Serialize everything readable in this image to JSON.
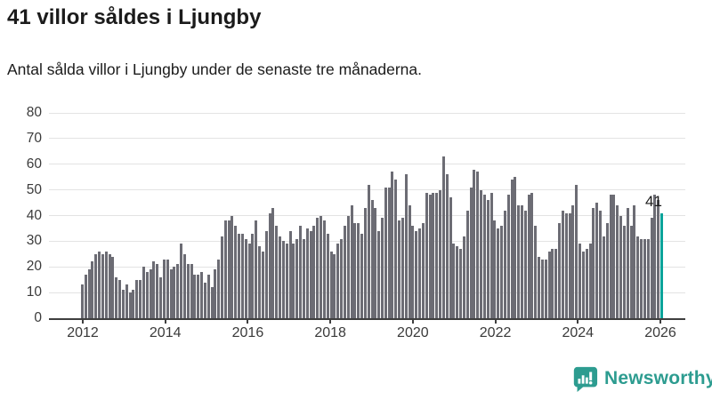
{
  "header": {
    "title": "41 villor såldes i Ljungby",
    "subtitle": "Antal sålda villor i Ljungby under de senaste tre månaderna."
  },
  "chart_data": {
    "type": "bar",
    "title": "41 villor såldes i Ljungby",
    "subtitle": "Antal sålda villor i Ljungby under de senaste tre månaderna.",
    "xlabel": "",
    "ylabel": "",
    "ylim": [
      0,
      80
    ],
    "y_ticks": [
      0,
      10,
      20,
      30,
      40,
      50,
      60,
      70,
      80
    ],
    "x_tick_labels": [
      "2012",
      "2014",
      "2016",
      "2018",
      "2020",
      "2022",
      "2024",
      "2026"
    ],
    "x_unit": "month",
    "grid": "horizontal",
    "bar_color": "#6c6c74",
    "highlight_color": "#0aa39a",
    "highlight_label": "41",
    "values": [
      13,
      17,
      19,
      22,
      25,
      26,
      25,
      26,
      25,
      24,
      16,
      15,
      11,
      13,
      10,
      11,
      15,
      15,
      20,
      18,
      19,
      22,
      21,
      16,
      23,
      23,
      19,
      20,
      21,
      29,
      25,
      21,
      21,
      17,
      17,
      18,
      14,
      17,
      12,
      19,
      23,
      32,
      38,
      38,
      40,
      36,
      33,
      33,
      31,
      29,
      33,
      38,
      28,
      26,
      34,
      41,
      43,
      36,
      32,
      30,
      29,
      34,
      29,
      31,
      36,
      31,
      35,
      34,
      36,
      39,
      40,
      38,
      33,
      26,
      25,
      29,
      31,
      36,
      40,
      44,
      37,
      37,
      33,
      43,
      52,
      46,
      43,
      34,
      39,
      51,
      51,
      57,
      54,
      38,
      39,
      56,
      44,
      36,
      34,
      35,
      37,
      49,
      48,
      49,
      49,
      50,
      63,
      56,
      47,
      29,
      28,
      27,
      32,
      42,
      51,
      58,
      57,
      50,
      48,
      46,
      49,
      38,
      35,
      36,
      42,
      48,
      54,
      55,
      44,
      44,
      42,
      48,
      49,
      36,
      24,
      23,
      23,
      26,
      27,
      27,
      37,
      42,
      41,
      41,
      44,
      52,
      29,
      26,
      27,
      29,
      43,
      45,
      42,
      32,
      37,
      48,
      48,
      44,
      40,
      36,
      43,
      36,
      44,
      32,
      31,
      31,
      31,
      39,
      48,
      46,
      41
    ]
  },
  "annotation": {
    "last_value_label": "41"
  },
  "logo": {
    "text": "Newsworthy",
    "color": "#2d9c90",
    "icon": "newsworthy-bar-chart-bubble-icon"
  }
}
